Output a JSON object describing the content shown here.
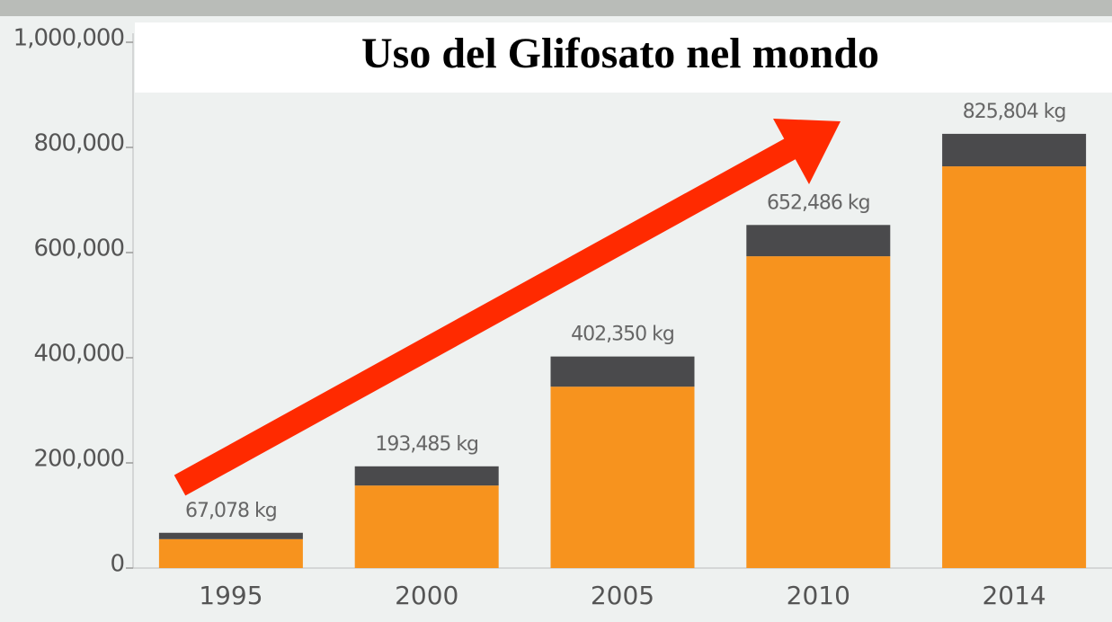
{
  "chart_data": {
    "type": "stacked_bar",
    "title": "Uso del Glifosato nel mondo",
    "categories": [
      "1995",
      "2000",
      "2005",
      "2010",
      "2014"
    ],
    "series": [
      {
        "color": "#f7931e",
        "values": [
          55000,
          157000,
          345000,
          593000,
          764000
        ]
      },
      {
        "color": "#4a4a4c",
        "values": [
          12078,
          36485,
          57350,
          59486,
          61804
        ]
      }
    ],
    "totals": [
      67078,
      193485,
      402350,
      652486,
      825804
    ],
    "total_labels": [
      "67,078 kg",
      "193,485 kg",
      "402,350 kg",
      "652,486 kg",
      "825,804 kg"
    ],
    "ylim": [
      0,
      1000000
    ],
    "yticks": [
      0,
      {
        "value": 200000,
        "label": "200,000"
      },
      {
        "value": 400000,
        "label": "400,000"
      },
      {
        "value": 600000,
        "label": "600,000"
      },
      {
        "value": 800000,
        "label": "800,000"
      },
      {
        "value": 1000000,
        "label": "1,000,000"
      }
    ]
  }
}
